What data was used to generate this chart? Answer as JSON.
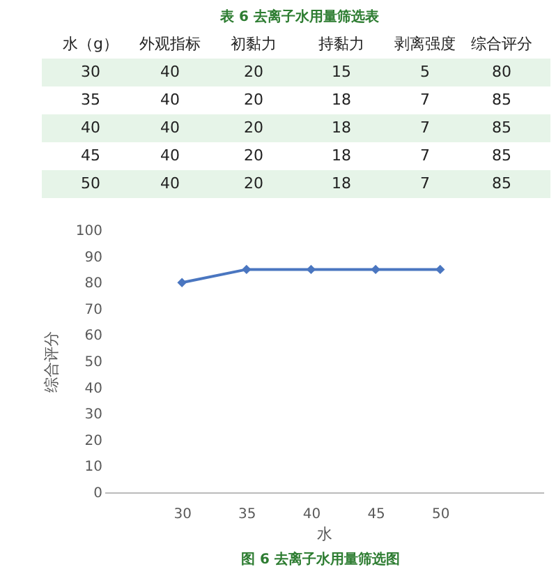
{
  "chart_data": {
    "type": "line",
    "x": [
      30,
      35,
      40,
      45,
      50
    ],
    "series": [
      {
        "color": "#4a76c0",
        "values": [
          80,
          85,
          85,
          85,
          85
        ]
      }
    ],
    "xlim": [
      24,
      58
    ],
    "xticks": [
      30,
      35,
      40,
      45,
      50
    ],
    "ylim": [
      0,
      100
    ],
    "yticks": [
      0,
      10,
      20,
      30,
      40,
      50,
      60,
      70,
      80,
      90,
      100
    ],
    "xlabel": "水",
    "ylabel": "综合评分",
    "marker": "diamond",
    "grid": false,
    "line_style": "solid",
    "annotations": [
      "表 6  去离子水用量筛选表",
      "水（g）",
      "外观指标",
      "初黏力",
      "持黏力",
      "剥离强度",
      "综合评分",
      "30",
      "40",
      "20",
      "15",
      "5",
      "80",
      "35",
      "40",
      "20",
      "18",
      "7",
      "85",
      "40",
      "40",
      "20",
      "18",
      "7",
      "85",
      "45",
      "40",
      "20",
      "18",
      "7",
      "85",
      "50",
      "40",
      "20",
      "18",
      "7",
      "85",
      "图  6 去离子水用量筛选图"
    ]
  }
}
